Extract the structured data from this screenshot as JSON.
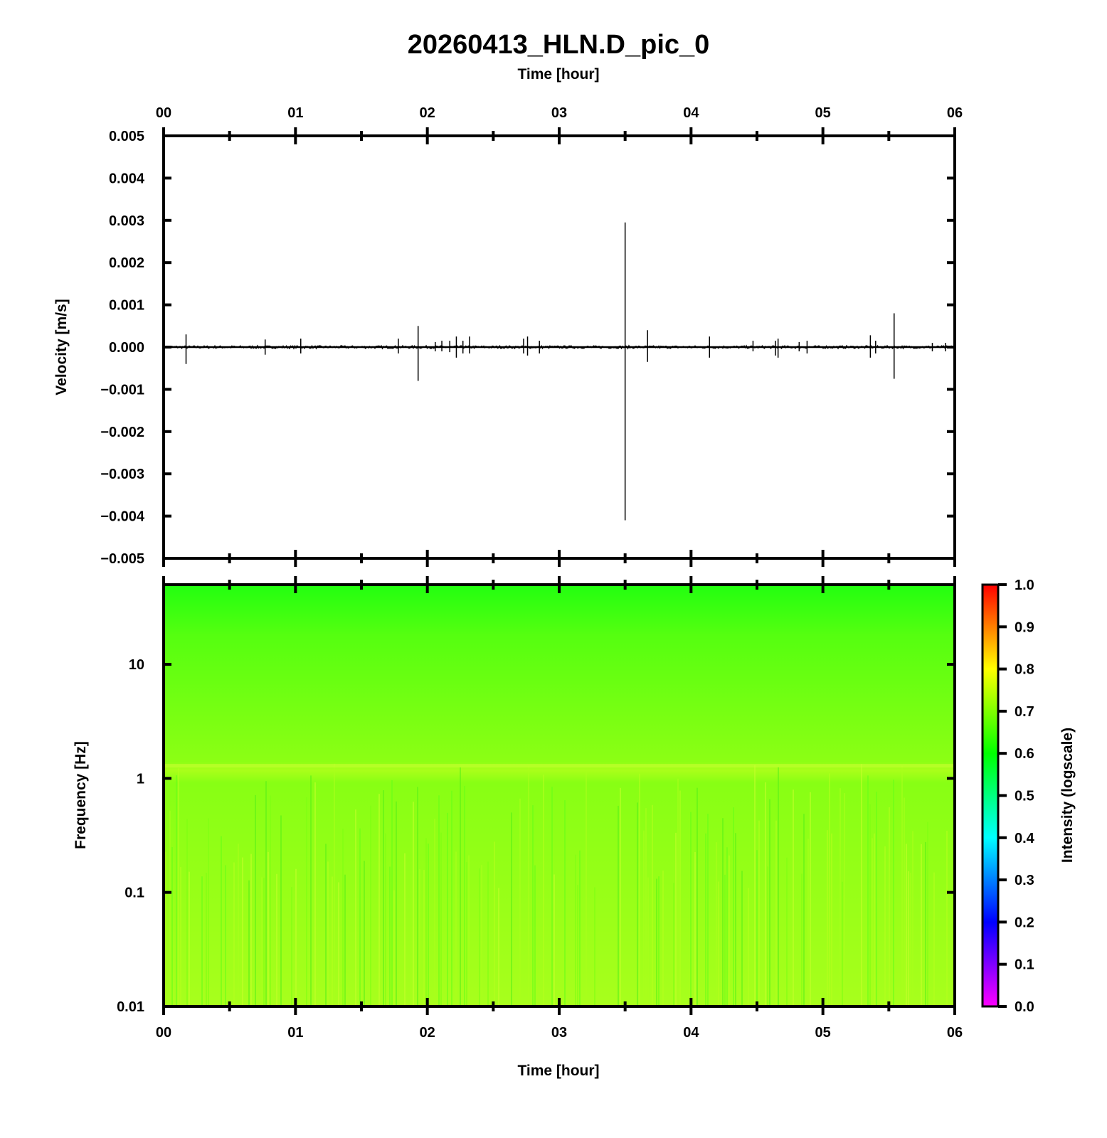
{
  "chart_data": [
    {
      "type": "line",
      "title": "20260413_HLN.D_pic_0",
      "xlabel": "Time [hour]",
      "ylabel": "Velocity [m/s]",
      "x_tick_labels": [
        "00",
        "01",
        "02",
        "03",
        "04",
        "05",
        "06"
      ],
      "xlim": [
        0,
        6
      ],
      "ylim": [
        -0.005,
        0.005
      ],
      "y_tick_labels": [
        "0.005",
        "0.004",
        "0.003",
        "0.002",
        "0.001",
        "0.000",
        "−0.001",
        "−0.002",
        "−0.003",
        "−0.004",
        "−0.005"
      ],
      "y_ticks": [
        0.005,
        0.004,
        0.003,
        0.002,
        0.001,
        0.0,
        -0.001,
        -0.002,
        -0.003,
        -0.004,
        -0.005
      ],
      "series": [
        {
          "spikes": [
            {
              "x": 0.17,
              "max": 0.0003,
              "min": -0.0004
            },
            {
              "x": 0.77,
              "max": 0.00018,
              "min": -0.00018
            },
            {
              "x": 1.04,
              "max": 0.0002,
              "min": -0.00015
            },
            {
              "x": 1.78,
              "max": 0.0002,
              "min": -0.00015
            },
            {
              "x": 1.93,
              "max": 0.0005,
              "min": -0.0008
            },
            {
              "x": 2.06,
              "max": 0.00012,
              "min": -0.0001
            },
            {
              "x": 2.11,
              "max": 0.00015,
              "min": -0.0001
            },
            {
              "x": 2.17,
              "max": 0.00015,
              "min": -0.00012
            },
            {
              "x": 2.22,
              "max": 0.00025,
              "min": -0.00025
            },
            {
              "x": 2.27,
              "max": 0.00015,
              "min": -0.00015
            },
            {
              "x": 2.32,
              "max": 0.00025,
              "min": -0.00015
            },
            {
              "x": 2.73,
              "max": 0.0002,
              "min": -0.00015
            },
            {
              "x": 2.76,
              "max": 0.00025,
              "min": -0.0002
            },
            {
              "x": 2.85,
              "max": 0.00015,
              "min": -0.00015
            },
            {
              "x": 3.5,
              "max": 0.00295,
              "min": -0.0041
            },
            {
              "x": 3.67,
              "max": 0.0004,
              "min": -0.00035
            },
            {
              "x": 4.14,
              "max": 0.00025,
              "min": -0.00025
            },
            {
              "x": 4.47,
              "max": 0.00015,
              "min": -0.0001
            },
            {
              "x": 4.64,
              "max": 0.00015,
              "min": -0.0002
            },
            {
              "x": 4.66,
              "max": 0.0002,
              "min": -0.00025
            },
            {
              "x": 4.82,
              "max": 0.00012,
              "min": -0.0001
            },
            {
              "x": 4.88,
              "max": 0.00015,
              "min": -0.00015
            },
            {
              "x": 5.36,
              "max": 0.00028,
              "min": -0.00025
            },
            {
              "x": 5.4,
              "max": 0.00015,
              "min": -0.00015
            },
            {
              "x": 5.54,
              "max": 0.0008,
              "min": -0.00075
            },
            {
              "x": 5.83,
              "max": 0.0001,
              "min": -0.0001
            },
            {
              "x": 5.93,
              "max": 0.0001,
              "min": -0.0001
            }
          ],
          "baseline_noise": 3e-05
        }
      ]
    },
    {
      "type": "heatmap",
      "xlabel": "Time [hour]",
      "ylabel": "Frequency [Hz]",
      "x_tick_labels": [
        "00",
        "01",
        "02",
        "03",
        "04",
        "05",
        "06"
      ],
      "xlim": [
        0,
        6
      ],
      "y_scale": "log",
      "ylim": [
        0.01,
        50
      ],
      "y_tick_labels": [
        "10",
        "1",
        "0.1",
        "0.01"
      ],
      "y_ticks": [
        10,
        1,
        0.1,
        0.01
      ],
      "intensity_profile": [
        {
          "freq": 50,
          "intensity": 0.6
        },
        {
          "freq": 20,
          "intensity": 0.63
        },
        {
          "freq": 5,
          "intensity": 0.65
        },
        {
          "freq": 1.3,
          "intensity": 0.7
        },
        {
          "freq": 1,
          "intensity": 0.67
        },
        {
          "freq": 0.3,
          "intensity": 0.68
        },
        {
          "freq": 0.01,
          "intensity": 0.72
        }
      ],
      "colorbar": {
        "label": "Intensity (logscale)",
        "range": [
          0.0,
          1.0
        ],
        "tick_labels": [
          "1.0",
          "0.9",
          "0.8",
          "0.7",
          "0.6",
          "0.5",
          "0.4",
          "0.3",
          "0.2",
          "0.1",
          "0.0"
        ],
        "colormap": [
          "#ff00ff",
          "#0000ff",
          "#00ffff",
          "#00ff00",
          "#ffff00",
          "#ff0000"
        ]
      }
    }
  ]
}
